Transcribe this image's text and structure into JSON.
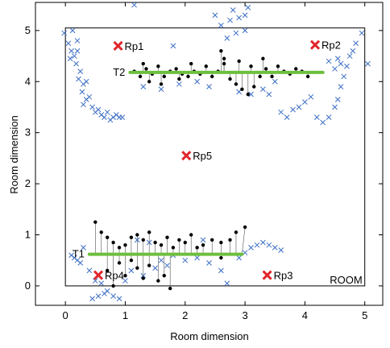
{
  "chart_data": {
    "type": "scatter",
    "xlabel": "Room dimension",
    "ylabel": "Room dimension",
    "xlim": [
      -0.5,
      5.3
    ],
    "ylim": [
      -0.38,
      5.55
    ],
    "xticks": [
      "0",
      "1",
      "2",
      "3",
      "4",
      "5"
    ],
    "yticks": [
      "0",
      "1",
      "2",
      "3",
      "4",
      "5"
    ],
    "xtick_values": [
      0,
      1,
      2,
      3,
      4,
      5
    ],
    "ytick_values": [
      0,
      1,
      2,
      3,
      4,
      5
    ],
    "grid": false,
    "room": {
      "label": "ROOM",
      "x0": 0,
      "x1": 5.0,
      "y0": 0,
      "y1": 5.05
    },
    "tracks": [
      {
        "label": "T1",
        "x0": 0.4,
        "x1": 2.95,
        "y": 0.62,
        "color": "#6dbf3e"
      },
      {
        "label": "T2",
        "x0": 1.08,
        "x1": 4.3,
        "y": 4.18,
        "color": "#6dbf3e"
      }
    ],
    "reference_points": [
      {
        "label": "Rp1",
        "x": 0.88,
        "y": 4.7
      },
      {
        "label": "Rp2",
        "x": 4.17,
        "y": 4.72
      },
      {
        "label": "Rp3",
        "x": 3.37,
        "y": 0.21
      },
      {
        "label": "Rp4",
        "x": 0.55,
        "y": 0.21
      },
      {
        "label": "Rp5",
        "x": 2.02,
        "y": 2.55
      }
    ],
    "blue_cross_series": [
      {
        "x": -0.02,
        "y": 4.95
      },
      {
        "x": 0.05,
        "y": 4.75
      },
      {
        "x": 0.1,
        "y": 4.6
      },
      {
        "x": 0.15,
        "y": 4.5
      },
      {
        "x": 0.2,
        "y": 4.6
      },
      {
        "x": 0.18,
        "y": 4.35
      },
      {
        "x": 0.25,
        "y": 4.2
      },
      {
        "x": 0.22,
        "y": 4.05
      },
      {
        "x": 0.3,
        "y": 3.95
      },
      {
        "x": 0.28,
        "y": 3.8
      },
      {
        "x": 0.35,
        "y": 3.65
      },
      {
        "x": 0.3,
        "y": 3.55
      },
      {
        "x": 0.45,
        "y": 3.5
      },
      {
        "x": 0.5,
        "y": 3.4
      },
      {
        "x": 0.55,
        "y": 3.45
      },
      {
        "x": 0.6,
        "y": 3.35
      },
      {
        "x": 0.65,
        "y": 3.3
      },
      {
        "x": 0.7,
        "y": 3.4
      },
      {
        "x": 0.75,
        "y": 3.25
      },
      {
        "x": 0.8,
        "y": 3.3
      },
      {
        "x": 0.85,
        "y": 3.35
      },
      {
        "x": 0.9,
        "y": 3.3
      },
      {
        "x": 0.95,
        "y": 3.3
      },
      {
        "x": 0.12,
        "y": 5.0
      },
      {
        "x": 0.2,
        "y": 4.8
      },
      {
        "x": 0.08,
        "y": 4.45
      },
      {
        "x": 0.35,
        "y": 4.0
      },
      {
        "x": 0.4,
        "y": 3.7
      },
      {
        "x": 1.15,
        "y": 5.5
      },
      {
        "x": 1.8,
        "y": 4.7
      },
      {
        "x": 2.5,
        "y": 5.3
      },
      {
        "x": 2.6,
        "y": 5.1
      },
      {
        "x": 2.7,
        "y": 4.85
      },
      {
        "x": 2.75,
        "y": 5.2
      },
      {
        "x": 2.8,
        "y": 5.4
      },
      {
        "x": 2.9,
        "y": 5.25
      },
      {
        "x": 3.0,
        "y": 5.3
      },
      {
        "x": 3.0,
        "y": 5.0
      },
      {
        "x": 3.05,
        "y": 5.45
      },
      {
        "x": 2.85,
        "y": 4.95
      },
      {
        "x": 3.6,
        "y": 3.4
      },
      {
        "x": 3.7,
        "y": 3.3
      },
      {
        "x": 3.8,
        "y": 3.45
      },
      {
        "x": 3.9,
        "y": 3.5
      },
      {
        "x": 4.0,
        "y": 3.6
      },
      {
        "x": 4.1,
        "y": 3.7
      },
      {
        "x": 4.2,
        "y": 3.3
      },
      {
        "x": 4.3,
        "y": 3.2
      },
      {
        "x": 4.4,
        "y": 3.3
      },
      {
        "x": 4.5,
        "y": 3.5
      },
      {
        "x": 4.55,
        "y": 3.65
      },
      {
        "x": 4.6,
        "y": 3.9
      },
      {
        "x": 4.65,
        "y": 4.1
      },
      {
        "x": 4.7,
        "y": 4.3
      },
      {
        "x": 4.75,
        "y": 4.5
      },
      {
        "x": 4.6,
        "y": 4.35
      },
      {
        "x": 4.5,
        "y": 4.25
      },
      {
        "x": 4.55,
        "y": 4.45
      },
      {
        "x": 4.4,
        "y": 4.4
      },
      {
        "x": 4.8,
        "y": 4.6
      },
      {
        "x": 4.85,
        "y": 4.75
      },
      {
        "x": 4.95,
        "y": 4.95
      },
      {
        "x": 5.05,
        "y": 4.35
      },
      {
        "x": 3.3,
        "y": 3.85
      },
      {
        "x": 3.5,
        "y": 4.0
      },
      {
        "x": 3.4,
        "y": 3.75
      },
      {
        "x": 1.3,
        "y": 3.9
      },
      {
        "x": 1.6,
        "y": 3.85
      },
      {
        "x": 1.9,
        "y": 3.95
      },
      {
        "x": 2.2,
        "y": 4.0
      },
      {
        "x": 2.4,
        "y": 3.9
      },
      {
        "x": 2.9,
        "y": 3.8
      },
      {
        "x": 3.1,
        "y": 3.75
      },
      {
        "x": 0.15,
        "y": 0.55
      },
      {
        "x": 0.2,
        "y": 0.5
      },
      {
        "x": 0.25,
        "y": 0.45
      },
      {
        "x": 0.4,
        "y": 0.3
      },
      {
        "x": 0.5,
        "y": 0.1
      },
      {
        "x": 0.6,
        "y": 0.05
      },
      {
        "x": 0.7,
        "y": -0.1
      },
      {
        "x": 0.8,
        "y": -0.2
      },
      {
        "x": 0.9,
        "y": -0.25
      },
      {
        "x": 0.45,
        "y": -0.25
      },
      {
        "x": 0.55,
        "y": -0.2
      },
      {
        "x": 0.65,
        "y": -0.15
      },
      {
        "x": 1.0,
        "y": 0.1
      },
      {
        "x": 1.1,
        "y": 0.3
      },
      {
        "x": 1.3,
        "y": 0.2
      },
      {
        "x": 1.5,
        "y": 0.35
      },
      {
        "x": 1.6,
        "y": 0.5
      },
      {
        "x": 1.7,
        "y": 0.4
      },
      {
        "x": 1.8,
        "y": 0.6
      },
      {
        "x": 2.0,
        "y": 0.5
      },
      {
        "x": 2.2,
        "y": 0.55
      },
      {
        "x": 2.4,
        "y": 0.45
      },
      {
        "x": 2.6,
        "y": 0.3
      },
      {
        "x": 2.7,
        "y": 0.05
      },
      {
        "x": 2.9,
        "y": 0.55
      },
      {
        "x": 3.0,
        "y": 0.65
      },
      {
        "x": 3.1,
        "y": 0.75
      },
      {
        "x": 3.2,
        "y": 0.8
      },
      {
        "x": 3.3,
        "y": 0.85
      },
      {
        "x": 3.4,
        "y": 0.8
      },
      {
        "x": 3.5,
        "y": 0.75
      },
      {
        "x": 3.6,
        "y": 0.7
      },
      {
        "x": 1.2,
        "y": 0.9
      },
      {
        "x": 1.4,
        "y": 0.85
      },
      {
        "x": 2.3,
        "y": 0.9
      },
      {
        "x": 0.3,
        "y": 0.75
      },
      {
        "x": 0.1,
        "y": 0.6
      }
    ],
    "black_dot_series": [
      {
        "x": 1.15,
        "y": 4.2
      },
      {
        "x": 1.25,
        "y": 4.1
      },
      {
        "x": 1.35,
        "y": 4.25
      },
      {
        "x": 1.45,
        "y": 4.15
      },
      {
        "x": 1.55,
        "y": 4.3
      },
      {
        "x": 1.65,
        "y": 4.1
      },
      {
        "x": 1.75,
        "y": 4.2
      },
      {
        "x": 1.85,
        "y": 4.25
      },
      {
        "x": 1.95,
        "y": 4.15
      },
      {
        "x": 2.05,
        "y": 4.1
      },
      {
        "x": 2.15,
        "y": 4.2
      },
      {
        "x": 2.25,
        "y": 4.15
      },
      {
        "x": 2.35,
        "y": 4.3
      },
      {
        "x": 2.45,
        "y": 4.1
      },
      {
        "x": 2.55,
        "y": 4.2
      },
      {
        "x": 2.65,
        "y": 4.35
      },
      {
        "x": 2.75,
        "y": 4.05
      },
      {
        "x": 2.85,
        "y": 3.95
      },
      {
        "x": 2.95,
        "y": 3.85
      },
      {
        "x": 3.05,
        "y": 3.75
      },
      {
        "x": 3.15,
        "y": 3.9
      },
      {
        "x": 3.25,
        "y": 4.1
      },
      {
        "x": 3.35,
        "y": 4.25
      },
      {
        "x": 3.45,
        "y": 4.1
      },
      {
        "x": 3.55,
        "y": 4.3
      },
      {
        "x": 3.65,
        "y": 4.2
      },
      {
        "x": 3.75,
        "y": 4.15
      },
      {
        "x": 3.85,
        "y": 4.25
      },
      {
        "x": 3.95,
        "y": 4.2
      },
      {
        "x": 4.05,
        "y": 4.1
      },
      {
        "x": 2.6,
        "y": 4.6
      },
      {
        "x": 2.65,
        "y": 4.45
      },
      {
        "x": 1.4,
        "y": 4.0
      },
      {
        "x": 1.6,
        "y": 3.95
      },
      {
        "x": 1.9,
        "y": 4.05
      },
      {
        "x": 2.1,
        "y": 4.35
      },
      {
        "x": 1.3,
        "y": 4.35
      },
      {
        "x": 2.9,
        "y": 4.4
      },
      {
        "x": 3.1,
        "y": 4.3
      },
      {
        "x": 3.3,
        "y": 4.45
      },
      {
        "x": 0.5,
        "y": 1.25
      },
      {
        "x": 0.6,
        "y": 1.05
      },
      {
        "x": 0.7,
        "y": 0.95
      },
      {
        "x": 0.8,
        "y": 0.85
      },
      {
        "x": 0.9,
        "y": 0.75
      },
      {
        "x": 1.0,
        "y": 0.8
      },
      {
        "x": 1.1,
        "y": 0.95
      },
      {
        "x": 1.2,
        "y": 1.0
      },
      {
        "x": 1.3,
        "y": 0.9
      },
      {
        "x": 1.4,
        "y": 1.05
      },
      {
        "x": 1.5,
        "y": 0.85
      },
      {
        "x": 1.6,
        "y": 0.8
      },
      {
        "x": 1.7,
        "y": 0.95
      },
      {
        "x": 1.8,
        "y": 0.75
      },
      {
        "x": 1.9,
        "y": 0.9
      },
      {
        "x": 2.0,
        "y": 0.85
      },
      {
        "x": 2.1,
        "y": 1.0
      },
      {
        "x": 2.2,
        "y": 0.75
      },
      {
        "x": 2.3,
        "y": 0.8
      },
      {
        "x": 2.45,
        "y": 0.9
      },
      {
        "x": 2.6,
        "y": 0.85
      },
      {
        "x": 2.75,
        "y": 0.9
      },
      {
        "x": 2.85,
        "y": 1.05
      },
      {
        "x": 3.0,
        "y": 1.15
      },
      {
        "x": 0.7,
        "y": 0.3
      },
      {
        "x": 0.8,
        "y": 0.0
      },
      {
        "x": 1.0,
        "y": 0.2
      },
      {
        "x": 1.2,
        "y": 0.35
      },
      {
        "x": 1.3,
        "y": 0.15
      },
      {
        "x": 1.4,
        "y": 0.4
      },
      {
        "x": 1.55,
        "y": 0.1
      },
      {
        "x": 1.65,
        "y": 0.2
      },
      {
        "x": 1.75,
        "y": -0.05
      },
      {
        "x": 0.9,
        "y": 0.45
      },
      {
        "x": 1.1,
        "y": 0.5
      },
      {
        "x": 2.6,
        "y": 0.55
      }
    ]
  }
}
